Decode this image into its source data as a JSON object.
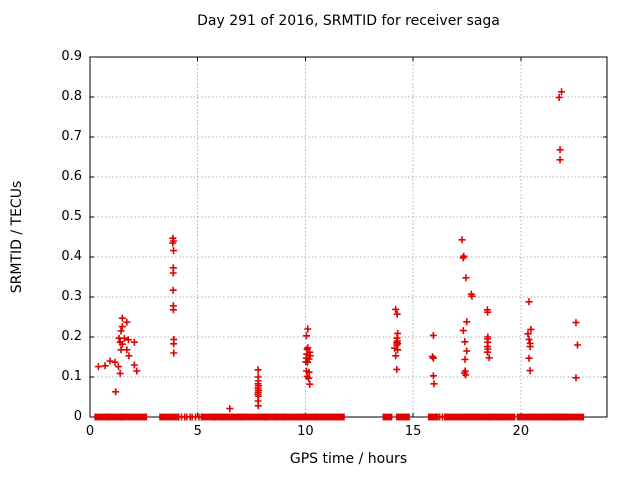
{
  "chart_data": {
    "type": "scatter",
    "title": "Day 291 of 2016, SRMTID for receiver saga",
    "xlabel": "GPS time / hours",
    "ylabel": "SRMTID / TECUs",
    "xlim": [
      0,
      24
    ],
    "ylim": [
      0,
      0.9
    ],
    "xticks": [
      0,
      5,
      10,
      15,
      20
    ],
    "xtick_labels": [
      "0",
      "5",
      "10",
      "15",
      "20"
    ],
    "yticks": [
      0,
      0.1,
      0.2,
      0.3,
      0.4,
      0.5,
      0.6,
      0.7,
      0.8,
      0.9
    ],
    "ytick_labels": [
      "0",
      "0.1",
      "0.2",
      "0.3",
      "0.4",
      "0.5",
      "0.6",
      "0.7",
      "0.8",
      "0.9"
    ],
    "grid": true,
    "legend": "none",
    "marker": "plus",
    "marker_color": "#e00000",
    "grid_color": "#b0b0b0",
    "border_color": "#000000",
    "points": [
      [
        0.39,
        0.126
      ],
      [
        0.7,
        0.128
      ],
      [
        0.93,
        0.14
      ],
      [
        1.16,
        0.137
      ],
      [
        1.19,
        0.063
      ],
      [
        1.32,
        0.126
      ],
      [
        1.35,
        0.197
      ],
      [
        1.4,
        0.187
      ],
      [
        1.4,
        0.109
      ],
      [
        1.44,
        0.215
      ],
      [
        1.44,
        0.168
      ],
      [
        1.5,
        0.247
      ],
      [
        1.5,
        0.226
      ],
      [
        1.5,
        0.182
      ],
      [
        1.6,
        0.197
      ],
      [
        1.71,
        0.237
      ],
      [
        1.71,
        0.168
      ],
      [
        1.78,
        0.193
      ],
      [
        1.81,
        0.153
      ],
      [
        2.06,
        0.187
      ],
      [
        2.06,
        0.13
      ],
      [
        2.17,
        0.115
      ],
      [
        3.85,
        0.447
      ],
      [
        3.88,
        0.44
      ],
      [
        3.84,
        0.435
      ],
      [
        3.88,
        0.416
      ],
      [
        3.87,
        0.373
      ],
      [
        3.86,
        0.36
      ],
      [
        3.86,
        0.317
      ],
      [
        3.87,
        0.278
      ],
      [
        3.87,
        0.268
      ],
      [
        3.89,
        0.194
      ],
      [
        3.88,
        0.183
      ],
      [
        3.89,
        0.16
      ],
      [
        6.49,
        0.021
      ],
      [
        7.8,
        0.118
      ],
      [
        7.81,
        0.1
      ],
      [
        7.81,
        0.09
      ],
      [
        7.8,
        0.083
      ],
      [
        7.82,
        0.078
      ],
      [
        7.8,
        0.072
      ],
      [
        7.82,
        0.067
      ],
      [
        7.81,
        0.062
      ],
      [
        7.79,
        0.057
      ],
      [
        7.82,
        0.052
      ],
      [
        7.8,
        0.04
      ],
      [
        7.81,
        0.028
      ],
      [
        10.11,
        0.22
      ],
      [
        10.05,
        0.203
      ],
      [
        10.11,
        0.173
      ],
      [
        10.08,
        0.169
      ],
      [
        10.2,
        0.162
      ],
      [
        10.06,
        0.157
      ],
      [
        10.22,
        0.153
      ],
      [
        10.04,
        0.147
      ],
      [
        10.17,
        0.145
      ],
      [
        10.02,
        0.138
      ],
      [
        10.1,
        0.137
      ],
      [
        10.05,
        0.115
      ],
      [
        10.17,
        0.112
      ],
      [
        10.08,
        0.101
      ],
      [
        10.15,
        0.097
      ],
      [
        10.2,
        0.082
      ],
      [
        14.19,
        0.269
      ],
      [
        14.26,
        0.257
      ],
      [
        14.28,
        0.209
      ],
      [
        14.25,
        0.197
      ],
      [
        14.27,
        0.19
      ],
      [
        14.23,
        0.186
      ],
      [
        14.29,
        0.184
      ],
      [
        14.25,
        0.18
      ],
      [
        14.14,
        0.172
      ],
      [
        14.28,
        0.168
      ],
      [
        14.19,
        0.153
      ],
      [
        14.24,
        0.119
      ],
      [
        15.94,
        0.204
      ],
      [
        15.9,
        0.151
      ],
      [
        15.94,
        0.147
      ],
      [
        15.94,
        0.103
      ],
      [
        15.97,
        0.083
      ],
      [
        17.27,
        0.443
      ],
      [
        17.35,
        0.402
      ],
      [
        17.32,
        0.398
      ],
      [
        17.45,
        0.348
      ],
      [
        17.7,
        0.307
      ],
      [
        17.73,
        0.302
      ],
      [
        17.49,
        0.238
      ],
      [
        17.33,
        0.216
      ],
      [
        17.4,
        0.188
      ],
      [
        17.49,
        0.165
      ],
      [
        17.41,
        0.144
      ],
      [
        17.42,
        0.115
      ],
      [
        17.38,
        0.11
      ],
      [
        17.44,
        0.105
      ],
      [
        18.45,
        0.268
      ],
      [
        18.46,
        0.262
      ],
      [
        18.47,
        0.2
      ],
      [
        18.45,
        0.195
      ],
      [
        18.47,
        0.187
      ],
      [
        18.45,
        0.176
      ],
      [
        18.47,
        0.17
      ],
      [
        18.45,
        0.162
      ],
      [
        18.53,
        0.148
      ],
      [
        20.38,
        0.288
      ],
      [
        20.47,
        0.219
      ],
      [
        20.33,
        0.208
      ],
      [
        20.38,
        0.194
      ],
      [
        20.43,
        0.184
      ],
      [
        20.43,
        0.176
      ],
      [
        20.38,
        0.147
      ],
      [
        20.43,
        0.116
      ],
      [
        21.89,
        0.813
      ],
      [
        21.78,
        0.799
      ],
      [
        21.82,
        0.668
      ],
      [
        21.82,
        0.643
      ],
      [
        22.56,
        0.236
      ],
      [
        22.63,
        0.18
      ],
      [
        22.56,
        0.098
      ]
    ],
    "zero_value_segments": [
      [
        0.34,
        0.8
      ],
      [
        0.9,
        1.43
      ],
      [
        1.52,
        2.51
      ],
      [
        3.35,
        3.5
      ],
      [
        3.75,
        3.94
      ],
      [
        4.12,
        4.12
      ],
      [
        4.25,
        4.25
      ],
      [
        4.4,
        4.4
      ],
      [
        4.49,
        4.49
      ],
      [
        4.65,
        4.65
      ],
      [
        4.74,
        4.74
      ],
      [
        4.9,
        4.9
      ],
      [
        5.06,
        5.06
      ],
      [
        5.17,
        5.17
      ],
      [
        5.33,
        5.72
      ],
      [
        5.8,
        6.1
      ],
      [
        6.18,
        6.49
      ],
      [
        6.57,
        6.96
      ],
      [
        7.07,
        8.12
      ],
      [
        8.21,
        8.58
      ],
      [
        8.68,
        8.97
      ],
      [
        9.08,
        9.82
      ],
      [
        9.98,
        10.45
      ],
      [
        10.57,
        10.79
      ],
      [
        10.97,
        11.1
      ],
      [
        11.32,
        11.41
      ],
      [
        11.53,
        11.69
      ],
      [
        13.72,
        13.9
      ],
      [
        14.34,
        14.46
      ],
      [
        14.59,
        14.71
      ],
      [
        15.83,
        16.04
      ],
      [
        16.14,
        16.14
      ],
      [
        16.23,
        16.23
      ],
      [
        16.36,
        16.36
      ],
      [
        16.48,
        16.48
      ],
      [
        16.57,
        16.76
      ],
      [
        17.03,
        17.4
      ],
      [
        17.53,
        17.9
      ],
      [
        18.03,
        18.5
      ],
      [
        18.62,
        19.08
      ],
      [
        19.33,
        19.61
      ],
      [
        19.95,
        20.45
      ],
      [
        20.54,
        20.82
      ],
      [
        21.0,
        21.25
      ],
      [
        21.34,
        21.53
      ],
      [
        21.62,
        21.71
      ],
      [
        21.8,
        22.0
      ],
      [
        22.06,
        22.8
      ]
    ]
  }
}
